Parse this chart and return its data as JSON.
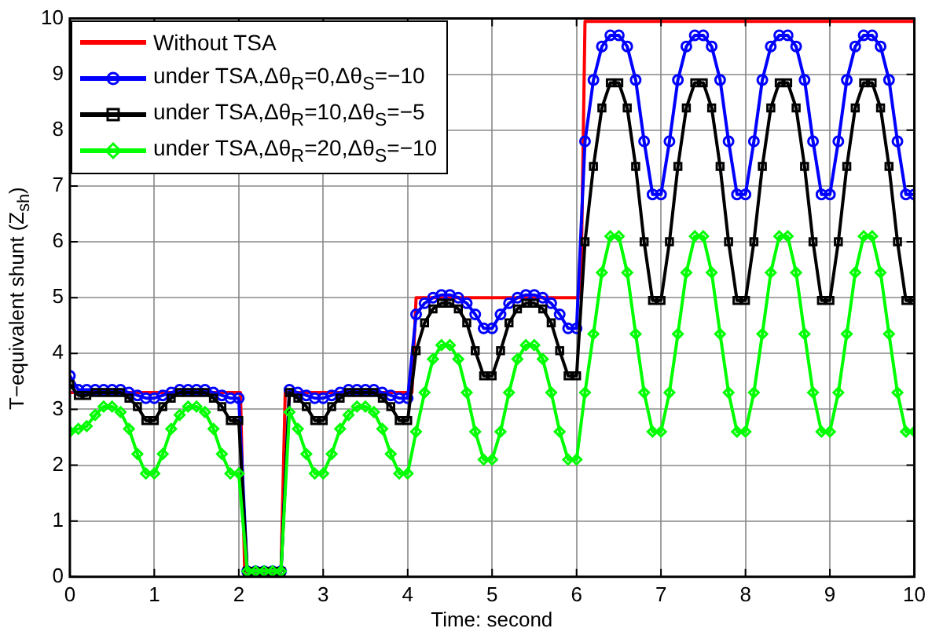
{
  "chart_data": {
    "type": "line",
    "xlabel": "Time: second",
    "ylabel": "T−equivalent shunt (Z$_{sh}$)",
    "xlim": [
      0,
      10
    ],
    "ylim": [
      0,
      10
    ],
    "xticks": [
      0,
      1,
      2,
      3,
      4,
      5,
      6,
      7,
      8,
      9,
      10
    ],
    "yticks": [
      0,
      1,
      2,
      3,
      4,
      5,
      6,
      7,
      8,
      9,
      10
    ],
    "grid": true,
    "legend": "top left",
    "line_style": "solid",
    "x": [
      0,
      0.1,
      0.2,
      0.3,
      0.4,
      0.5,
      0.6,
      0.7,
      0.8,
      0.9,
      1,
      1.1,
      1.2,
      1.3,
      1.4,
      1.5,
      1.6,
      1.7,
      1.8,
      1.9,
      2,
      2.1,
      2.2,
      2.3,
      2.4,
      2.5,
      2.6,
      2.7,
      2.8,
      2.9,
      3,
      3.1,
      3.2,
      3.3,
      3.4,
      3.5,
      3.6,
      3.7,
      3.8,
      3.9,
      4,
      4.1,
      4.2,
      4.3,
      4.4,
      4.5,
      4.6,
      4.7,
      4.8,
      4.9,
      5,
      5.1,
      5.2,
      5.3,
      5.4,
      5.5,
      5.6,
      5.7,
      5.8,
      5.9,
      6,
      6.1,
      6.2,
      6.3,
      6.4,
      6.5,
      6.6,
      6.7,
      6.8,
      6.9,
      7,
      7.1,
      7.2,
      7.3,
      7.4,
      7.5,
      7.6,
      7.7,
      7.8,
      7.9,
      8,
      8.1,
      8.2,
      8.3,
      8.4,
      8.5,
      8.6,
      8.7,
      8.8,
      8.9,
      9,
      9.1,
      9.2,
      9.3,
      9.4,
      9.5,
      9.6,
      9.7,
      9.8,
      9.9,
      10
    ],
    "series": [
      {
        "name": "Without TSA",
        "color": "#ff0000",
        "marker": "none",
        "x": [
          0,
          2.02,
          2.07,
          2.5,
          2.55,
          4.05,
          4.1,
          6.05,
          6.1,
          10
        ],
        "values": [
          3.3,
          3.3,
          0.1,
          0.1,
          3.3,
          3.3,
          5,
          5,
          9.95,
          9.95
        ]
      },
      {
        "name": "under TSA,Δθ$_{R}$=0,Δθ$_{S}$=−10",
        "color": "#0000ff",
        "marker": "circle",
        "values": [
          3.6,
          3.35,
          3.35,
          3.35,
          3.35,
          3.35,
          3.35,
          3.3,
          3.25,
          3.2,
          3.2,
          3.25,
          3.3,
          3.35,
          3.35,
          3.35,
          3.35,
          3.3,
          3.25,
          3.2,
          3.2,
          0.1,
          0.1,
          0.1,
          0.1,
          0.1,
          3.35,
          3.3,
          3.25,
          3.2,
          3.2,
          3.25,
          3.3,
          3.35,
          3.35,
          3.35,
          3.35,
          3.3,
          3.25,
          3.2,
          3.2,
          4.7,
          4.9,
          5,
          5.05,
          5.05,
          5,
          4.9,
          4.7,
          4.45,
          4.45,
          4.7,
          4.9,
          5,
          5.05,
          5.05,
          5,
          4.9,
          4.7,
          4.45,
          4.45,
          7.8,
          8.9,
          9.5,
          9.7,
          9.7,
          9.5,
          8.9,
          7.8,
          6.85,
          6.85,
          7.8,
          8.9,
          9.5,
          9.7,
          9.7,
          9.5,
          8.9,
          7.8,
          6.85,
          6.85,
          7.8,
          8.9,
          9.5,
          9.7,
          9.7,
          9.5,
          8.9,
          7.8,
          6.85,
          6.85,
          7.8,
          8.9,
          9.5,
          9.7,
          9.7,
          9.5,
          8.9,
          7.8,
          6.85,
          6.85
        ]
      },
      {
        "name": "under TSA,Δθ$_{R}$=10,Δθ$_{S}$=−5",
        "color": "#000000",
        "marker": "square",
        "values": [
          3.45,
          3.25,
          3.25,
          3.3,
          3.3,
          3.3,
          3.3,
          3.2,
          3.05,
          2.8,
          2.8,
          3.05,
          3.2,
          3.3,
          3.3,
          3.3,
          3.3,
          3.2,
          3.05,
          2.8,
          2.8,
          0.1,
          0.1,
          0.1,
          0.1,
          0.1,
          3.3,
          3.2,
          3.05,
          2.8,
          2.8,
          3.05,
          3.2,
          3.3,
          3.3,
          3.3,
          3.3,
          3.2,
          3.05,
          2.8,
          2.8,
          4.05,
          4.55,
          4.8,
          4.9,
          4.9,
          4.8,
          4.55,
          4.05,
          3.6,
          3.6,
          4.05,
          4.55,
          4.8,
          4.9,
          4.9,
          4.8,
          4.55,
          4.05,
          3.6,
          3.6,
          6,
          7.35,
          8.4,
          8.85,
          8.85,
          8.4,
          7.35,
          6,
          4.95,
          4.95,
          6,
          7.35,
          8.4,
          8.85,
          8.85,
          8.4,
          7.35,
          6,
          4.95,
          4.95,
          6,
          7.35,
          8.4,
          8.85,
          8.85,
          8.4,
          7.35,
          6,
          4.95,
          4.95,
          6,
          7.35,
          8.4,
          8.85,
          8.85,
          8.4,
          7.35,
          6,
          4.95,
          4.95
        ]
      },
      {
        "name": "under TSA,Δθ$_{R}$=20,Δθ$_{S}$=−10",
        "color": "#00ff00",
        "marker": "diamond",
        "values": [
          2.6,
          2.65,
          2.7,
          2.9,
          3.05,
          3.05,
          2.95,
          2.65,
          2.2,
          1.85,
          1.85,
          2.2,
          2.65,
          2.9,
          3.05,
          3.05,
          2.95,
          2.65,
          2.2,
          1.85,
          1.85,
          0.1,
          0.1,
          0.1,
          0.1,
          0.1,
          2.95,
          2.65,
          2.2,
          1.85,
          1.85,
          2.2,
          2.65,
          2.9,
          3.05,
          3.05,
          2.95,
          2.65,
          2.2,
          1.85,
          1.85,
          2.6,
          3.3,
          3.9,
          4.15,
          4.15,
          3.9,
          3.3,
          2.6,
          2.1,
          2.1,
          2.6,
          3.3,
          3.9,
          4.15,
          4.15,
          3.9,
          3.3,
          2.6,
          2.1,
          2.1,
          3.3,
          4.35,
          5.45,
          6.1,
          6.1,
          5.45,
          4.35,
          3.3,
          2.6,
          2.6,
          3.3,
          4.35,
          5.45,
          6.1,
          6.1,
          5.45,
          4.35,
          3.3,
          2.6,
          2.6,
          3.3,
          4.35,
          5.45,
          6.1,
          6.1,
          5.45,
          4.35,
          3.3,
          2.6,
          2.6,
          3.3,
          4.35,
          5.45,
          6.1,
          6.1,
          5.45,
          4.35,
          3.3,
          2.6,
          2.6
        ]
      }
    ]
  }
}
